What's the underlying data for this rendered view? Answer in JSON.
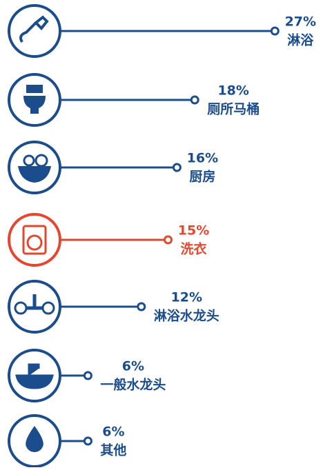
{
  "chart_data": {
    "type": "lollipop",
    "categories": [
      "淋浴",
      "厕所马桶",
      "厨房",
      "洗衣",
      "淋浴水龙头",
      "一般水龙头",
      "其他"
    ],
    "values": [
      27,
      18,
      16,
      15,
      12,
      6,
      6
    ],
    "value_labels": [
      "27%",
      "18%",
      "16%",
      "15%",
      "12%",
      "6%",
      "6%"
    ],
    "colors": [
      "#1b4c8c",
      "#1b4c8c",
      "#1b4c8c",
      "#e5472e",
      "#1b4c8c",
      "#1b4c8c",
      "#1b4c8c"
    ]
  }
}
